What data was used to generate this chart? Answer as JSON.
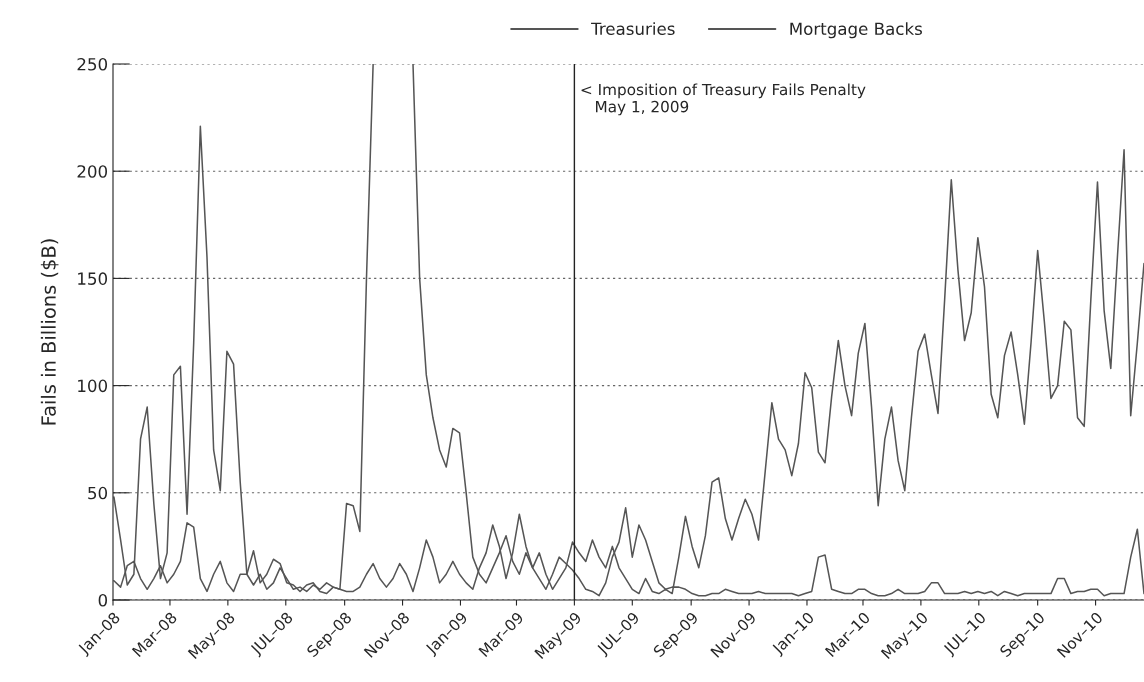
{
  "chart_data": {
    "type": "line",
    "ylabel": "Fails in Billions ($B)",
    "x": [
      "2008-01-02",
      "2008-01-09",
      "2008-01-16",
      "2008-01-23",
      "2008-01-30",
      "2008-02-06",
      "2008-02-13",
      "2008-02-20",
      "2008-02-27",
      "2008-03-05",
      "2008-03-12",
      "2008-03-19",
      "2008-03-26",
      "2008-04-02",
      "2008-04-09",
      "2008-04-16",
      "2008-04-23",
      "2008-04-30",
      "2008-05-07",
      "2008-05-14",
      "2008-05-21",
      "2008-05-28",
      "2008-06-04",
      "2008-06-11",
      "2008-06-18",
      "2008-06-25",
      "2008-07-02",
      "2008-07-09",
      "2008-07-16",
      "2008-07-23",
      "2008-07-30",
      "2008-08-06",
      "2008-08-13",
      "2008-08-20",
      "2008-08-27",
      "2008-09-03",
      "2008-09-10",
      "2008-09-17",
      "2008-09-24",
      "2008-10-01",
      "2008-10-08",
      "2008-10-15",
      "2008-10-22",
      "2008-10-29",
      "2008-11-05",
      "2008-11-12",
      "2008-11-19",
      "2008-11-26",
      "2008-12-03",
      "2008-12-10",
      "2008-12-17",
      "2008-12-24",
      "2008-12-31",
      "2009-01-07",
      "2009-01-14",
      "2009-01-21",
      "2009-01-28",
      "2009-02-04",
      "2009-02-11",
      "2009-02-18",
      "2009-02-25",
      "2009-03-04",
      "2009-03-11",
      "2009-03-18",
      "2009-03-25",
      "2009-04-01",
      "2009-04-08",
      "2009-04-15",
      "2009-04-22",
      "2009-04-29",
      "2009-05-06",
      "2009-05-13",
      "2009-05-20",
      "2009-05-27",
      "2009-06-03",
      "2009-06-10",
      "2009-06-17",
      "2009-06-24",
      "2009-07-01",
      "2009-07-08",
      "2009-07-15",
      "2009-07-22",
      "2009-07-29",
      "2009-08-05",
      "2009-08-12",
      "2009-08-19",
      "2009-08-26",
      "2009-09-02",
      "2009-09-09",
      "2009-09-16",
      "2009-09-23",
      "2009-09-30",
      "2009-10-07",
      "2009-10-14",
      "2009-10-21",
      "2009-10-28",
      "2009-11-04",
      "2009-11-11",
      "2009-11-18",
      "2009-11-25",
      "2009-12-02",
      "2009-12-09",
      "2009-12-16",
      "2009-12-23",
      "2009-12-30",
      "2010-01-06",
      "2010-01-13",
      "2010-01-20",
      "2010-01-27",
      "2010-02-03",
      "2010-02-10",
      "2010-02-17",
      "2010-02-24",
      "2010-03-03",
      "2010-03-10",
      "2010-03-17",
      "2010-03-24",
      "2010-03-31",
      "2010-04-07",
      "2010-04-14",
      "2010-04-21",
      "2010-04-28",
      "2010-05-05",
      "2010-05-12",
      "2010-05-19",
      "2010-05-26",
      "2010-06-02",
      "2010-06-09",
      "2010-06-16",
      "2010-06-23",
      "2010-06-30",
      "2010-07-07",
      "2010-07-14",
      "2010-07-21",
      "2010-07-28",
      "2010-08-04",
      "2010-08-11",
      "2010-08-18",
      "2010-08-25",
      "2010-09-01",
      "2010-09-08",
      "2010-09-15",
      "2010-09-22",
      "2010-09-29",
      "2010-10-06",
      "2010-10-13",
      "2010-10-20",
      "2010-10-27",
      "2010-11-03",
      "2010-11-10",
      "2010-11-17",
      "2010-11-24",
      "2010-12-01",
      "2010-12-08",
      "2010-12-15",
      "2010-12-22"
    ],
    "series": [
      {
        "name": "Treasuries",
        "color": "#555555",
        "values": [
          48,
          28,
          7,
          12,
          75,
          90,
          45,
          10,
          22,
          105,
          109,
          40,
          120,
          221,
          160,
          70,
          51,
          116,
          110,
          55,
          12,
          7,
          12,
          5,
          8,
          15,
          10,
          5,
          6,
          4,
          7,
          5,
          8,
          6,
          5,
          45,
          44,
          32,
          150,
          250,
          null,
          null,
          null,
          null,
          null,
          250,
          150,
          105,
          85,
          70,
          62,
          80,
          78,
          50,
          20,
          12,
          8,
          15,
          22,
          30,
          18,
          12,
          22,
          15,
          10,
          5,
          12,
          20,
          17,
          14,
          10,
          5,
          4,
          2,
          8,
          20,
          27,
          43,
          20,
          35,
          28,
          18,
          8,
          5,
          6,
          6,
          5,
          3,
          2,
          2,
          3,
          3,
          5,
          4,
          3,
          3,
          3,
          4,
          3,
          3,
          3,
          3,
          3,
          2,
          3,
          4,
          20,
          21,
          5,
          4,
          3,
          3,
          5,
          5,
          3,
          2,
          2,
          3,
          5,
          3,
          3,
          3,
          4,
          8,
          8,
          3,
          3,
          3,
          4,
          3,
          4,
          3,
          4,
          2,
          4,
          3,
          2,
          3,
          3,
          3,
          3,
          3,
          10,
          10,
          3,
          4,
          4,
          5,
          5,
          2,
          3,
          3,
          3,
          20,
          33,
          3
        ]
      },
      {
        "name": "Mortgage Backs",
        "color": "#555555",
        "values": [
          9,
          6,
          16,
          18,
          10,
          5,
          10,
          16,
          8,
          12,
          18,
          36,
          34,
          10,
          4,
          12,
          18,
          8,
          4,
          12,
          12,
          23,
          8,
          12,
          19,
          17,
          8,
          7,
          4,
          7,
          8,
          4,
          3,
          6,
          5,
          4,
          4,
          6,
          12,
          17,
          10,
          6,
          10,
          17,
          12,
          4,
          15,
          28,
          20,
          8,
          12,
          18,
          12,
          8,
          5,
          15,
          22,
          35,
          25,
          10,
          22,
          40,
          25,
          15,
          22,
          12,
          5,
          10,
          15,
          27,
          22,
          18,
          28,
          20,
          15,
          25,
          15,
          10,
          5,
          3,
          10,
          4,
          3,
          5,
          3,
          20,
          39,
          25,
          15,
          30,
          55,
          57,
          38,
          28,
          38,
          47,
          40,
          28,
          60,
          92,
          75,
          70,
          58,
          73,
          106,
          99,
          69,
          64,
          95,
          121,
          100,
          86,
          115,
          129,
          90,
          44,
          75,
          90,
          65,
          51,
          85,
          116,
          124,
          105,
          87,
          140,
          196,
          154,
          121,
          134,
          169,
          146,
          96,
          85,
          114,
          125,
          105,
          82,
          120,
          163,
          130,
          94,
          100,
          130,
          126,
          85,
          81,
          140,
          195,
          135,
          108,
          160,
          210,
          86,
          120,
          157
        ]
      }
    ],
    "xlim": [
      "2008-01-01",
      "2010-12-22"
    ],
    "xticks": [
      {
        "value": "2008-01-01",
        "label": "Jan–08"
      },
      {
        "value": "2008-03-01",
        "label": "Mar–08"
      },
      {
        "value": "2008-05-01",
        "label": "May–08"
      },
      {
        "value": "2008-07-01",
        "label": "JUL–08"
      },
      {
        "value": "2008-09-01",
        "label": "Sep–08"
      },
      {
        "value": "2008-11-01",
        "label": "Nov–08"
      },
      {
        "value": "2009-01-01",
        "label": "Jan–09"
      },
      {
        "value": "2009-03-01",
        "label": "Mar–09"
      },
      {
        "value": "2009-05-01",
        "label": "May–09"
      },
      {
        "value": "2009-07-01",
        "label": "JUL–09"
      },
      {
        "value": "2009-09-01",
        "label": "Sep–09"
      },
      {
        "value": "2009-11-01",
        "label": "Nov–09"
      },
      {
        "value": "2010-01-01",
        "label": "Jan–10"
      },
      {
        "value": "2010-03-01",
        "label": "Mar–10"
      },
      {
        "value": "2010-05-01",
        "label": "May–10"
      },
      {
        "value": "2010-07-01",
        "label": "JUL–10"
      },
      {
        "value": "2010-09-01",
        "label": "Sep–10"
      },
      {
        "value": "2010-11-01",
        "label": "Nov–10"
      }
    ],
    "ylim": [
      0,
      250
    ],
    "yticks": [
      0,
      50,
      100,
      150,
      200,
      250
    ],
    "grid": "y",
    "legend": "top right",
    "marker": "none",
    "line_style": "solid",
    "ref_lines": [
      {
        "axis": "x",
        "value": "2009-05-01",
        "label": "< Imposition of Treasury Fails Penalty\n   May 1, 2009",
        "color": "#222222",
        "line_style": "solid"
      }
    ]
  }
}
